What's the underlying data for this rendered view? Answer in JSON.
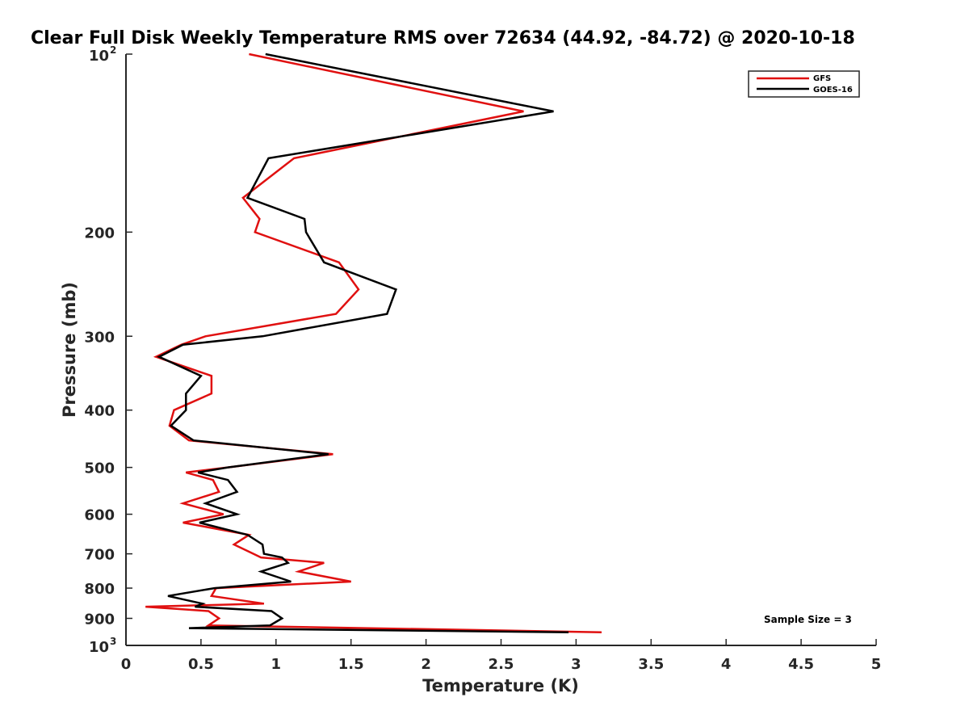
{
  "chart_data": {
    "type": "line",
    "title": "Clear Full Disk Weekly Temperature RMS over 72634 (44.92, -84.72) @ 2020-10-18",
    "xlabel": "Temperature (K)",
    "ylabel": "Pressure (mb)",
    "xlim": [
      0,
      5
    ],
    "ylim": [
      100,
      1000
    ],
    "y_scale": "log",
    "y_reversed": true,
    "grid": false,
    "legend_position": "top-right",
    "annotation": "Sample Size = 3",
    "x_ticks": [
      "0",
      "0.5",
      "1",
      "1.5",
      "2",
      "2.5",
      "3",
      "3.5",
      "4",
      "4.5",
      "5"
    ],
    "y_ticks": [
      {
        "value": 100,
        "base": "10",
        "exp": "2"
      },
      {
        "value": 200,
        "label": "200"
      },
      {
        "value": 300,
        "label": "300"
      },
      {
        "value": 400,
        "label": "400"
      },
      {
        "value": 500,
        "label": "500"
      },
      {
        "value": 600,
        "label": "600"
      },
      {
        "value": 700,
        "label": "700"
      },
      {
        "value": 800,
        "label": "800"
      },
      {
        "value": 900,
        "label": "900"
      },
      {
        "value": 1000,
        "base": "10",
        "exp": "3"
      }
    ],
    "series": [
      {
        "name": "GFS",
        "color": "#e01010",
        "points": [
          [
            0.82,
            100
          ],
          [
            2.65,
            125
          ],
          [
            1.12,
            150
          ],
          [
            0.78,
            175
          ],
          [
            0.89,
            190
          ],
          [
            0.86,
            200
          ],
          [
            1.42,
            225
          ],
          [
            1.55,
            250
          ],
          [
            1.4,
            275
          ],
          [
            0.53,
            300
          ],
          [
            0.37,
            310
          ],
          [
            0.2,
            325
          ],
          [
            0.57,
            350
          ],
          [
            0.57,
            375
          ],
          [
            0.32,
            400
          ],
          [
            0.29,
            425
          ],
          [
            0.42,
            450
          ],
          [
            1.38,
            475
          ],
          [
            0.68,
            500
          ],
          [
            0.4,
            510
          ],
          [
            0.58,
            525
          ],
          [
            0.62,
            550
          ],
          [
            0.38,
            575
          ],
          [
            0.65,
            600
          ],
          [
            0.38,
            620
          ],
          [
            0.82,
            650
          ],
          [
            0.72,
            675
          ],
          [
            0.85,
            700
          ],
          [
            0.9,
            710
          ],
          [
            1.32,
            725
          ],
          [
            1.15,
            750
          ],
          [
            1.5,
            780
          ],
          [
            0.6,
            800
          ],
          [
            0.57,
            825
          ],
          [
            0.92,
            850
          ],
          [
            0.13,
            860
          ],
          [
            0.55,
            875
          ],
          [
            0.62,
            900
          ],
          [
            0.55,
            925
          ],
          [
            3.17,
            950
          ]
        ]
      },
      {
        "name": "GOES-16",
        "color": "#000000",
        "points": [
          [
            0.93,
            100
          ],
          [
            2.85,
            125
          ],
          [
            0.95,
            150
          ],
          [
            0.81,
            175
          ],
          [
            1.19,
            190
          ],
          [
            1.2,
            200
          ],
          [
            1.32,
            225
          ],
          [
            1.8,
            250
          ],
          [
            1.74,
            275
          ],
          [
            0.91,
            300
          ],
          [
            0.38,
            310
          ],
          [
            0.22,
            325
          ],
          [
            0.5,
            350
          ],
          [
            0.4,
            375
          ],
          [
            0.4,
            400
          ],
          [
            0.3,
            425
          ],
          [
            0.45,
            450
          ],
          [
            1.35,
            475
          ],
          [
            0.68,
            500
          ],
          [
            0.48,
            510
          ],
          [
            0.68,
            525
          ],
          [
            0.74,
            550
          ],
          [
            0.53,
            575
          ],
          [
            0.74,
            600
          ],
          [
            0.49,
            620
          ],
          [
            0.81,
            650
          ],
          [
            0.91,
            675
          ],
          [
            0.92,
            700
          ],
          [
            1.04,
            710
          ],
          [
            1.08,
            725
          ],
          [
            0.9,
            750
          ],
          [
            1.1,
            780
          ],
          [
            0.59,
            800
          ],
          [
            0.28,
            825
          ],
          [
            0.51,
            850
          ],
          [
            0.46,
            860
          ],
          [
            0.97,
            875
          ],
          [
            1.04,
            900
          ],
          [
            0.96,
            925
          ],
          [
            0.42,
            935
          ],
          [
            2.95,
            950
          ]
        ]
      }
    ]
  }
}
